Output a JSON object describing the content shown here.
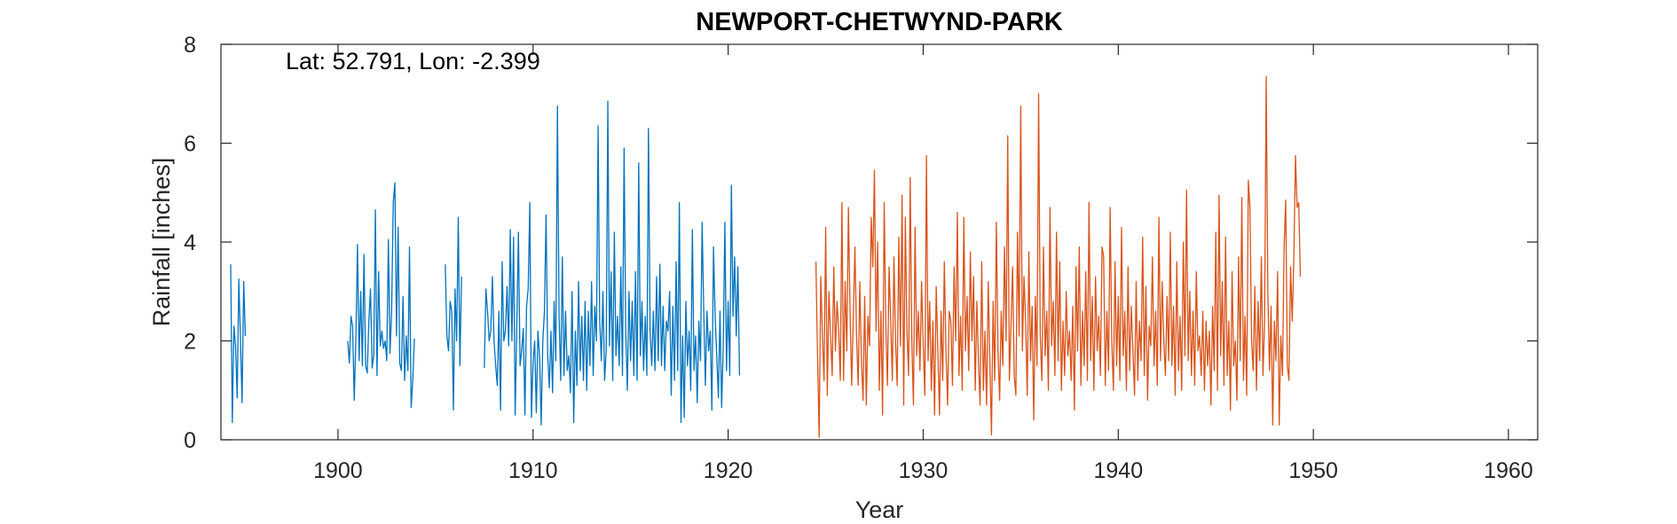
{
  "chart_data": {
    "type": "line",
    "title": "NEWPORT-CHETWYND-PARK",
    "annotation": "Lat: 52.791, Lon: -2.399",
    "xlabel": "Year",
    "ylabel": "Rainfall [inches]",
    "xlim": [
      1894,
      1961.5
    ],
    "ylim": [
      0,
      8
    ],
    "xticks": [
      1900,
      1910,
      1920,
      1930,
      1940,
      1950,
      1960
    ],
    "yticks": [
      0,
      2,
      4,
      6,
      8
    ],
    "grid": false,
    "series": [
      {
        "color": "#0072BD",
        "segments": [
          {
            "x_start": 1894.5,
            "values": [
              3.55,
              0.35,
              2.3,
              1.9,
              0.85,
              3.25,
              2.05,
              0.75,
              3.2,
              2.1
            ]
          },
          {
            "x_start": 1900.5,
            "values": [
              2.0,
              1.55,
              2.5,
              2.3,
              0.8,
              2.05,
              3.95,
              1.6,
              3.0,
              1.5,
              3.75,
              1.5,
              1.35,
              2.4,
              3.05,
              1.45,
              1.7,
              4.65,
              1.3,
              3.4,
              1.9,
              2.2,
              1.85,
              2.0,
              1.6,
              4.05,
              1.75,
              2.6,
              4.8,
              5.2,
              2.1,
              4.3,
              1.55,
              1.4,
              2.9,
              1.2,
              2.1,
              1.4,
              3.9,
              0.65,
              1.2,
              2.05
            ]
          },
          {
            "x_start": 1905.5,
            "values": [
              3.55,
              2.1,
              1.8,
              2.8,
              2.6,
              0.6,
              3.05,
              2.0,
              4.5,
              1.5,
              3.3
            ]
          },
          {
            "x_start": 1907.5,
            "values": [
              1.45,
              3.05,
              2.6,
              2.0,
              2.2,
              3.3,
              2.0,
              1.5,
              1.1,
              2.6,
              0.6,
              3.6,
              2.0,
              2.2,
              3.1,
              1.9,
              4.25,
              2.0,
              4.1,
              0.5,
              2.3,
              4.2,
              1.5,
              1.8,
              2.25,
              0.5,
              2.7,
              3.05,
              4.8,
              0.45,
              1.55,
              2.0,
              0.55,
              2.2,
              1.7,
              0.3,
              2.0,
              2.6,
              4.55,
              1.7,
              1.05,
              2.2,
              0.95,
              2.8,
              1.6,
              6.75,
              2.5,
              1.2,
              3.7,
              1.3,
              2.6,
              1.4,
              1.7,
              0.95,
              3.0,
              0.35,
              2.2,
              1.1,
              3.2,
              1.4,
              2.5,
              1.2,
              2.8,
              1.0,
              2.6,
              1.5,
              3.2,
              1.3,
              2.7,
              2.0,
              6.35,
              2.4,
              1.6,
              3.0,
              1.2,
              1.8,
              6.85,
              1.9,
              3.4,
              1.2,
              4.2,
              1.7,
              2.5,
              1.5,
              3.5,
              1.3,
              5.9,
              2.2,
              1.0,
              3.0,
              1.6,
              2.8,
              1.3,
              3.4,
              1.2,
              5.6,
              1.7,
              2.8,
              1.4,
              2.5,
              1.3,
              6.3,
              2.2,
              1.5,
              2.6,
              1.4,
              3.3,
              1.6,
              3.55,
              1.5,
              2.7,
              1.4,
              2.4,
              2.2,
              3.0,
              0.9,
              2.7,
              1.2,
              3.6,
              1.4,
              4.8,
              0.35,
              2.1,
              0.45,
              2.8,
              1.5,
              2.2,
              1.0,
              4.25,
              1.4,
              2.1,
              0.75,
              2.4,
              1.6,
              4.4,
              2.6,
              1.1,
              2.6,
              1.8,
              2.2,
              0.6,
              3.9,
              2.5,
              1.7,
              0.85,
              2.6,
              0.65,
              1.9,
              4.4,
              1.4,
              2.8,
              1.3,
              5.15,
              2.5,
              3.7,
              2.1,
              3.5,
              1.3
            ]
          }
        ]
      },
      {
        "color": "#D95319",
        "segments": [
          {
            "x_start": 1924.5,
            "values": [
              3.6,
              1.7,
              0.05,
              3.3,
              2.1,
              1.2,
              4.3,
              0.9,
              3.0,
              2.1,
              1.3,
              3.5,
              1.8,
              2.8,
              2.2,
              1.2,
              4.8,
              1.2,
              3.2,
              1.8,
              4.7,
              2.6,
              1.1,
              2.5,
              3.9,
              2.1,
              1.1,
              3.2,
              1.6,
              0.8,
              2.9,
              0.7,
              2.5,
              1.9,
              4.5,
              3.5,
              5.45,
              2.2,
              4.0,
              1.0,
              2.6,
              0.5,
              4.8,
              2.3,
              1.1,
              3.5,
              2.4,
              1.2,
              3.7,
              2.0,
              1.1,
              4.1,
              1.9,
              4.95,
              0.7,
              4.5,
              2.2,
              1.3,
              5.3,
              2.0,
              0.7,
              4.3,
              1.7,
              2.6,
              1.4,
              3.2,
              1.9,
              0.9,
              5.75,
              1.6,
              2.8,
              1.0,
              2.4,
              0.5,
              3.1,
              1.8,
              0.5,
              2.6,
              1.2,
              3.6,
              1.8,
              0.7,
              2.6,
              2.4,
              1.1,
              3.5,
              2.0,
              4.6,
              1.3,
              2.5,
              1.0,
              4.5,
              1.8,
              2.9,
              1.4,
              3.8,
              2.0,
              3.3,
              1.0,
              2.8,
              1.6,
              0.7,
              3.6,
              1.0,
              2.2,
              0.7,
              3.2,
              1.6,
              0.1,
              2.8,
              1.2,
              4.4,
              1.8,
              0.8,
              2.6,
              1.5,
              3.9,
              2.0,
              6.15,
              1.2,
              2.3,
              3.5,
              1.3,
              0.9,
              4.2,
              2.1,
              6.75,
              1.8,
              3.3,
              2.4,
              0.9,
              3.8,
              1.6,
              2.7,
              0.4,
              2.9,
              1.5,
              7.0,
              2.1,
              1.2,
              3.9,
              1.7,
              2.6,
              1.0,
              4.7,
              1.9,
              2.8,
              1.3,
              4.2,
              1.6,
              3.6,
              1.0,
              2.4,
              1.3,
              3.0,
              1.7,
              2.2,
              1.2,
              2.7,
              0.6,
              3.5,
              1.8,
              3.9,
              1.1,
              2.6,
              1.5,
              3.4,
              1.2,
              4.8,
              1.6,
              2.9,
              1.0,
              3.3,
              1.8,
              2.5,
              1.3,
              3.9,
              3.7,
              1.1,
              2.6,
              1.4,
              4.7,
              2.0,
              1.0,
              3.6,
              1.5,
              2.9,
              1.2,
              4.3,
              1.7,
              2.6,
              1.0,
              3.5,
              1.4,
              2.7,
              1.8,
              0.9,
              3.2,
              1.2,
              2.4,
              1.6,
              4.1,
              1.3,
              3.1,
              0.8,
              2.3,
              1.9,
              3.7,
              1.5,
              2.6,
              1.1,
              4.5,
              1.6,
              3.2,
              2.0,
              1.3,
              2.9,
              1.6,
              4.2,
              1.5,
              2.7,
              0.9,
              3.6,
              1.4,
              2.5,
              1.0,
              4.0,
              1.7,
              5.05,
              1.6,
              3.0,
              1.3,
              2.6,
              1.1,
              3.4,
              1.8,
              2.1,
              1.3,
              2.6,
              1.0,
              2.4,
              1.5,
              2.2,
              0.7,
              2.7,
              1.4,
              4.2,
              1.0,
              4.95,
              1.7,
              3.2,
              1.1,
              4.1,
              1.3,
              2.4,
              0.6,
              3.4,
              1.5,
              2.0,
              0.8,
              3.7,
              1.6,
              4.9,
              1.2,
              2.5,
              0.9,
              5.25,
              4.7,
              2.0,
              1.4,
              3.1,
              1.0,
              2.8,
              1.6,
              3.7,
              1.3,
              2.4,
              7.35,
              3.0,
              1.4,
              2.7,
              0.3,
              2.4,
              1.6,
              3.4,
              0.3,
              2.1,
              1.3,
              3.9,
              4.85,
              1.5,
              1.2,
              3.5,
              2.4,
              3.7,
              5.75,
              4.7,
              4.8,
              3.3
            ]
          }
        ]
      }
    ]
  }
}
